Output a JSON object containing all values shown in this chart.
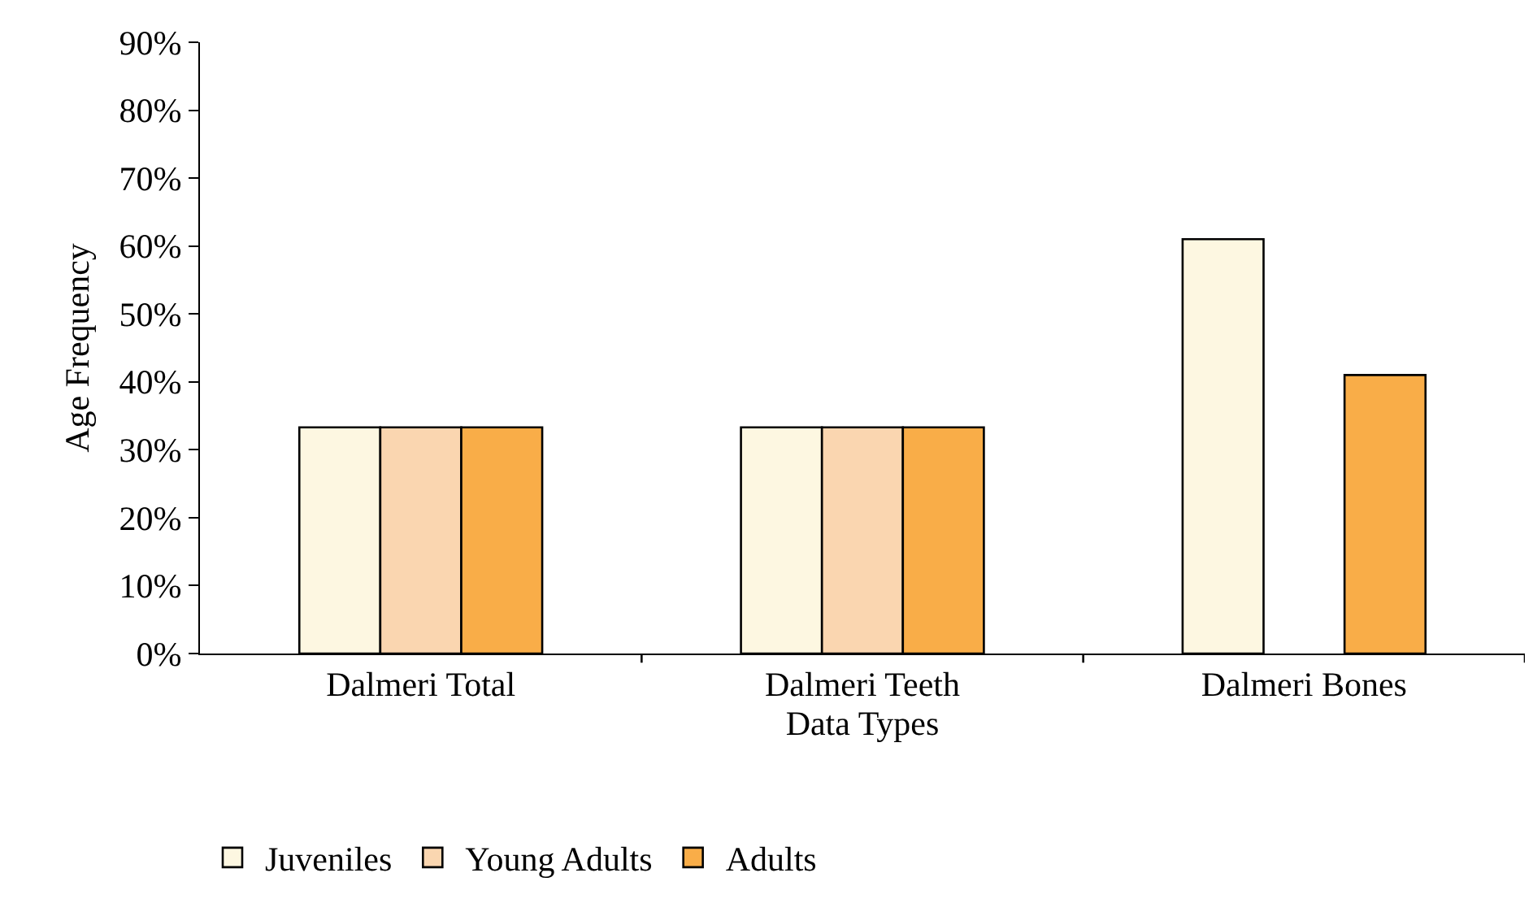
{
  "chart_data": {
    "type": "bar",
    "xlabel": "Data Types",
    "ylabel": "Age Frequency",
    "categories": [
      "Dalmeri Total",
      "Dalmeri Teeth",
      "Dalmeri Bones"
    ],
    "series": [
      {
        "name": "Juveniles",
        "color": "#fdf7e1",
        "values": [
          33.3,
          33.3,
          61
        ]
      },
      {
        "name": "Young Adults",
        "color": "#fad6b0",
        "values": [
          33.3,
          33.3,
          null
        ]
      },
      {
        "name": "Adults",
        "color": "#f9ad48",
        "values": [
          33.3,
          33.3,
          41
        ]
      }
    ],
    "ylim": [
      0,
      90
    ],
    "yticks": [
      {
        "value": 0,
        "label": "0%"
      },
      {
        "value": 10,
        "label": "10%"
      },
      {
        "value": 20,
        "label": "20%"
      },
      {
        "value": 30,
        "label": "30%"
      },
      {
        "value": 40,
        "label": "40%"
      },
      {
        "value": 50,
        "label": "50%"
      },
      {
        "value": 60,
        "label": "60%"
      },
      {
        "value": 70,
        "label": "70%"
      },
      {
        "value": 80,
        "label": "80%"
      },
      {
        "value": 90,
        "label": "90%"
      }
    ],
    "legend": "bottom"
  }
}
